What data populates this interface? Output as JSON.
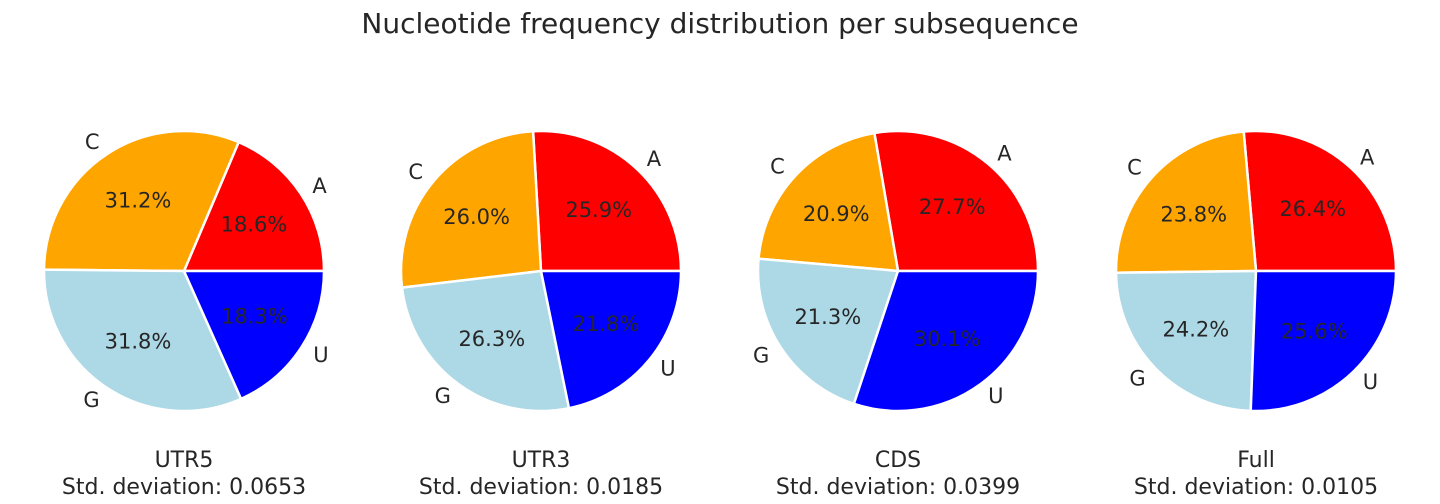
{
  "figure": {
    "title": "Nucleotide frequency distribution per subsequence"
  },
  "colors": {
    "A": "#ff0000",
    "C": "#ffa500",
    "G": "#add8e6",
    "U": "#0000ff"
  },
  "chart_data": [
    {
      "type": "pie",
      "title": "UTR5",
      "subtitle": "Std. deviation: 0.0653",
      "labels": [
        "A",
        "C",
        "G",
        "U"
      ],
      "values": [
        18.6,
        31.2,
        31.8,
        18.3
      ],
      "value_labels": [
        "18.6%",
        "31.2%",
        "31.8%",
        "18.3%"
      ]
    },
    {
      "type": "pie",
      "title": "UTR3",
      "subtitle": "Std. deviation: 0.0185",
      "labels": [
        "A",
        "C",
        "G",
        "U"
      ],
      "values": [
        25.9,
        26.0,
        26.3,
        21.8
      ],
      "value_labels": [
        "25.9%",
        "26.0%",
        "26.3%",
        "21.8%"
      ]
    },
    {
      "type": "pie",
      "title": "CDS",
      "subtitle": "Std. deviation: 0.0399",
      "labels": [
        "A",
        "C",
        "G",
        "U"
      ],
      "values": [
        27.7,
        20.9,
        21.3,
        30.1
      ],
      "value_labels": [
        "27.7%",
        "20.9%",
        "21.3%",
        "30.1%"
      ]
    },
    {
      "type": "pie",
      "title": "Full",
      "subtitle": "Std. deviation: 0.0105",
      "labels": [
        "A",
        "C",
        "G",
        "U"
      ],
      "values": [
        26.4,
        23.8,
        24.2,
        25.6
      ],
      "value_labels": [
        "26.4%",
        "23.8%",
        "24.2%",
        "25.6%"
      ]
    }
  ]
}
